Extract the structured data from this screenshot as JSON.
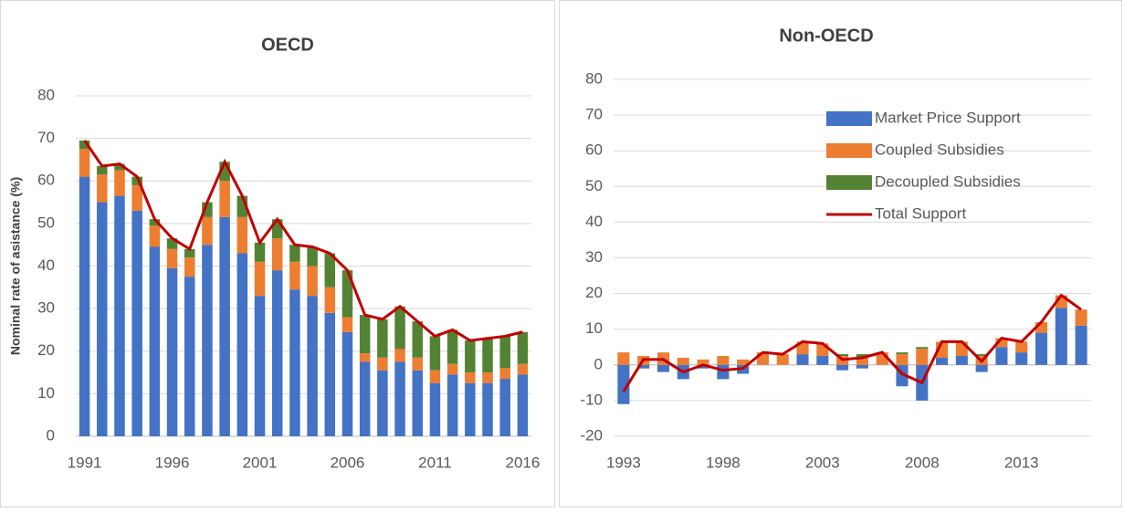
{
  "chart_data": [
    {
      "type": "bar",
      "title": "OECD",
      "y_label": "Nominal rate of asistance (%)",
      "stacked": true,
      "legend": false,
      "grid": true,
      "categories": [
        "1991",
        null,
        null,
        null,
        null,
        "1996",
        null,
        null,
        null,
        null,
        "2001",
        null,
        null,
        null,
        null,
        "2006",
        null,
        null,
        null,
        null,
        "2011",
        null,
        null,
        null,
        null,
        "2016"
      ],
      "ylim": [
        0,
        80
      ],
      "yticks": [
        0,
        10,
        20,
        30,
        40,
        50,
        60,
        70,
        80
      ],
      "series": [
        {
          "name": "Market Price Support",
          "color": "#4472c4",
          "type": "bar",
          "values": [
            61,
            55,
            56.5,
            53,
            44.5,
            39.5,
            37.5,
            45,
            51.5,
            43,
            33,
            39,
            34.5,
            33,
            29,
            24.5,
            17.5,
            15.5,
            17.5,
            15.5,
            12.5,
            14.5,
            12.5,
            12.5,
            13.5,
            14.5
          ]
        },
        {
          "name": "Coupled Subsidies",
          "color": "#ed7d31",
          "type": "bar",
          "values": [
            6.5,
            6.5,
            6,
            6,
            5,
            4.5,
            4.5,
            6.5,
            8.5,
            8.5,
            8,
            7.5,
            6.5,
            7,
            6,
            3.5,
            2,
            3,
            3,
            3,
            3,
            2.5,
            2.5,
            2.5,
            2.5,
            2.5
          ]
        },
        {
          "name": "Decoupled Subsidies",
          "color": "#548235",
          "type": "bar",
          "values": [
            2,
            2,
            1.5,
            2,
            1.5,
            2.5,
            2,
            3.5,
            4.5,
            5,
            4.5,
            4.5,
            4,
            4.5,
            8,
            11,
            9,
            9,
            10,
            8.5,
            8,
            8,
            7.5,
            8,
            7.5,
            7.5
          ]
        },
        {
          "name": "Total Support",
          "color": "#c00000",
          "type": "line",
          "values": [
            69.5,
            63.5,
            64,
            61,
            51,
            46.5,
            44,
            55,
            64.5,
            56.5,
            45.5,
            51,
            45,
            44.5,
            43,
            39,
            28.5,
            27.5,
            30.5,
            27,
            23.5,
            25,
            22.5,
            23,
            23.5,
            24.5
          ]
        }
      ]
    },
    {
      "type": "bar",
      "title": "Non-OECD",
      "stacked": true,
      "legend": true,
      "legend_position": "upper right",
      "grid": true,
      "categories": [
        "1993",
        null,
        null,
        null,
        null,
        "1998",
        null,
        null,
        null,
        null,
        "2003",
        null,
        null,
        null,
        null,
        "2008",
        null,
        null,
        null,
        null,
        "2013",
        null,
        null,
        null
      ],
      "ylim": [
        -20,
        80
      ],
      "yticks": [
        -20,
        -10,
        0,
        10,
        20,
        30,
        40,
        50,
        60,
        70,
        80
      ],
      "series": [
        {
          "name": "Market Price Support",
          "color": "#4472c4",
          "type": "bar",
          "values": [
            -11,
            -1,
            -2,
            -4,
            -1,
            -4,
            -2.5,
            0,
            0,
            3,
            2.5,
            -1.5,
            -1,
            0,
            -6,
            -10,
            2,
            2.5,
            -2,
            5,
            3.5,
            9,
            16,
            11
          ]
        },
        {
          "name": "Coupled Subsidies",
          "color": "#ed7d31",
          "type": "bar",
          "values": [
            3.5,
            2.5,
            3.5,
            2,
            1.5,
            2.5,
            1.5,
            3.5,
            3,
            3.5,
            3.5,
            2.5,
            2,
            3.5,
            3,
            4.5,
            4.5,
            4,
            2.5,
            2.5,
            3,
            3,
            3.5,
            4.5
          ]
        },
        {
          "name": "Decoupled Subsidies",
          "color": "#548235",
          "type": "bar",
          "values": [
            0,
            0,
            0,
            0,
            0,
            0,
            0,
            0,
            0,
            0,
            0,
            0.5,
            1,
            0,
            0.5,
            0.5,
            0,
            0,
            0.5,
            0,
            0,
            0,
            0,
            0
          ]
        },
        {
          "name": "Total Support",
          "color": "#c00000",
          "type": "line",
          "values": [
            -7.5,
            1.5,
            1.5,
            -2,
            0,
            -1.5,
            -1,
            3.5,
            3,
            6.5,
            6,
            1.5,
            2,
            3.5,
            -2.5,
            -5,
            6.5,
            6.5,
            1,
            7.5,
            6.5,
            12,
            19.5,
            15.5
          ]
        }
      ]
    }
  ]
}
